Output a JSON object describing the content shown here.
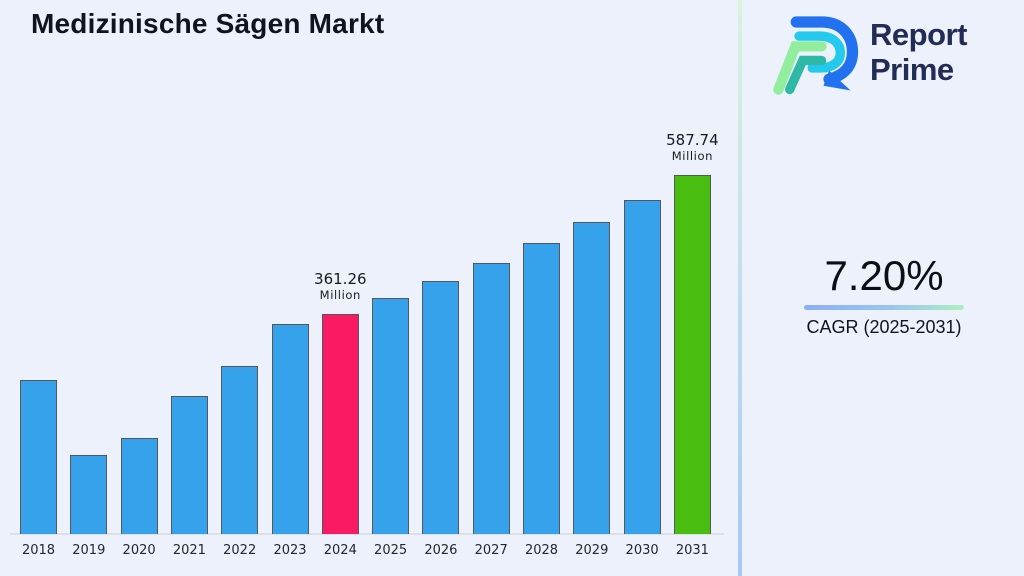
{
  "page": {
    "background": "#ECF1FB"
  },
  "header": {
    "title": "Medizinische Sägen Markt",
    "logo": {
      "line1": "Report",
      "line2": "Prime",
      "text_color": "#222C55"
    }
  },
  "right_panel": {
    "cagr_value": "7.20%",
    "cagr_label": "CAGR (2025-2031)",
    "underline_colors": [
      "#8AB0F5",
      "#AFEFC2"
    ]
  },
  "chart_data": {
    "type": "bar",
    "title": "Medizinische Sägen Markt",
    "unit": "Million",
    "categories": [
      "2018",
      "2019",
      "2020",
      "2021",
      "2022",
      "2023",
      "2024",
      "2025",
      "2026",
      "2027",
      "2028",
      "2029",
      "2030",
      "2031"
    ],
    "values": [
      253,
      130,
      158,
      227,
      276,
      344,
      361.26,
      387.27,
      415.15,
      445.05,
      477.09,
      511.44,
      548.26,
      587.74
    ],
    "ylim": [
      0,
      620
    ],
    "grid": false,
    "legend": false,
    "bar_color": "#36A2EB",
    "highlights": {
      "2024": "#FA1A63",
      "2031": "#49BD10"
    },
    "annotations": [
      {
        "year": "2024",
        "value_label": "361.26",
        "unit_label": "Million"
      },
      {
        "year": "2031",
        "value_label": "587.74",
        "unit_label": "Million"
      }
    ]
  }
}
